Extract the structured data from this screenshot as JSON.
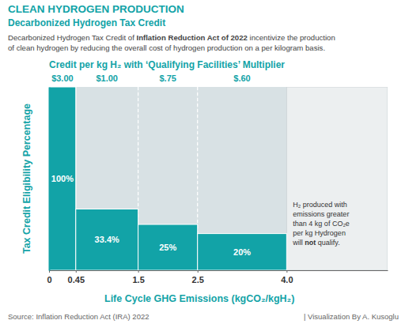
{
  "chart_data": {
    "type": "bar",
    "title": "CLEAN HYDROGEN PRODUCTION",
    "subtitle": "Decarbonized Hydrogen Tax Credit",
    "description": [
      "Decarbonized Hydrogen Tax Credit of Inflation Reduction Act of 2022 incentivize the production",
      "of clean hydrogen by reducing the overall cost of hydrogen  production on a per kilogram basis."
    ],
    "description_emphasis": "Inflation Reduction Act of 2022",
    "credit_title": "Credit per kg H₂ with ‘Qualifying Facilities’ Multiplier",
    "credit_per_kg": [
      3,
      1,
      0.75,
      0.6
    ],
    "credit_per_kg_labels": [
      "$3.00",
      "$1.00",
      "$.75",
      "$.60"
    ],
    "x_label": "Life Cycle GHG Emissions (kgCO₂/kgH₂)",
    "y_label": "Tax Credit Eligibility Percentage",
    "bins": [
      0,
      0.45,
      1.5,
      2.5,
      4
    ],
    "values": [
      100,
      33.4,
      25,
      20
    ],
    "value_labels": [
      "100%",
      "33.4%",
      "25%",
      "20%"
    ],
    "data_labels": true,
    "color": "#12a3a7",
    "xlim": [
      0,
      5.7
    ],
    "xticks": [
      0,
      0.45,
      1.5,
      2.5,
      {
        "value": 4,
        "label": "4.0"
      }
    ],
    "ylim": [
      0,
      100
    ],
    "tick_labels": "x",
    "grid": false,
    "annotation": [
      "H₂ produced with",
      "emissions greater",
      "than 4 kg of CO₂e",
      "per kg Hydrogen",
      "will not qualify."
    ],
    "annotation_emphasis": "not",
    "source": "Source:  Inflation Reduction Act (IRA) 2022",
    "credit": "| Visualization By A. Kusoglu"
  }
}
